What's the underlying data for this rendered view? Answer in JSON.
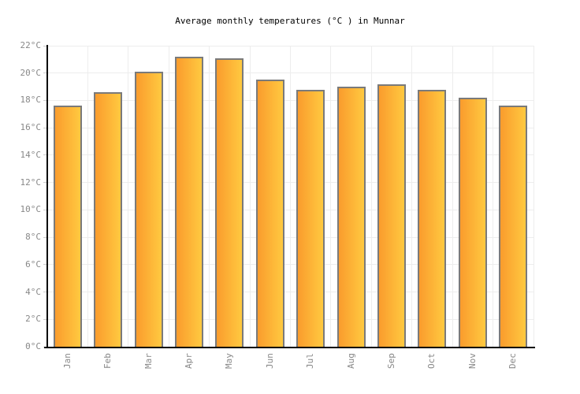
{
  "chart_data": {
    "type": "bar",
    "title": "Average monthly temperatures (°C ) in Munnar",
    "categories": [
      "Jan",
      "Feb",
      "Mar",
      "Apr",
      "May",
      "Jun",
      "Jul",
      "Aug",
      "Sep",
      "Oct",
      "Nov",
      "Dec"
    ],
    "values": [
      17.6,
      18.6,
      20.1,
      21.2,
      21.1,
      19.5,
      18.8,
      19.0,
      19.2,
      18.8,
      18.2,
      17.6
    ],
    "series_name": "Average monthly temperature",
    "xlabel": "",
    "ylabel": "",
    "ylim": [
      0,
      22
    ],
    "ytick_step": 2,
    "yticks": [
      "0°C",
      "2°C",
      "4°C",
      "6°C",
      "8°C",
      "10°C",
      "12°C",
      "14°C",
      "16°C",
      "18°C",
      "20°C",
      "22°C"
    ],
    "xtick_rotation": -90,
    "grid": true,
    "legend": false
  },
  "colors": {
    "background": "#FFFFFF",
    "title_text": "#000000",
    "axis_line": "#000000",
    "grid_line": "#EDEDED",
    "tick_mark": "#CCCCCC",
    "axis_label_text": "#888888",
    "bar_gradient_left": "#FA9C2D",
    "bar_gradient_right": "#FFC940",
    "bar_border": "#7A7A7A"
  }
}
